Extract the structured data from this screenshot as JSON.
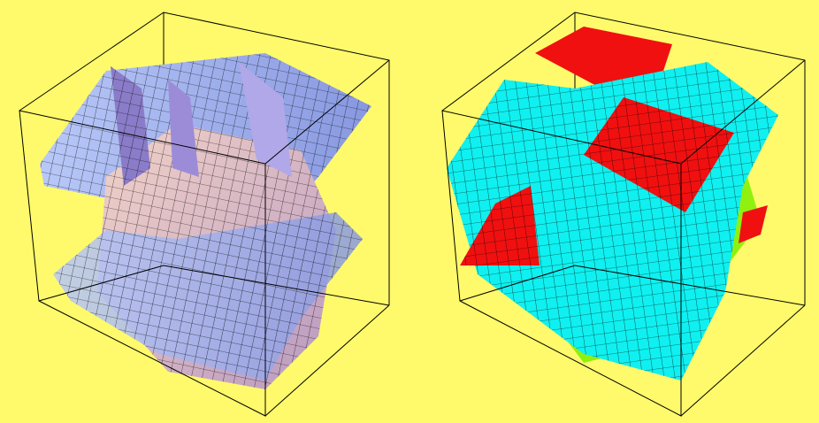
{
  "colors": {
    "background": "#FFFA6B",
    "left_surface_light": "#C8D4F8",
    "left_surface_pink": "#E8B8B8",
    "left_surface_purple": "#8A7CC8",
    "right_surface_cyan": "#10F0F0",
    "right_surface_red": "#F01010",
    "right_surface_green": "#90F010",
    "mesh": "#000000"
  },
  "plots": [
    {
      "id": "left",
      "style": "shaded"
    },
    {
      "id": "right",
      "style": "flat-colored"
    }
  ]
}
